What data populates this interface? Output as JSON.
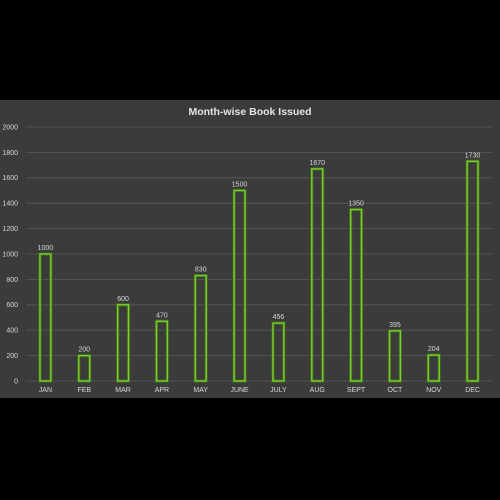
{
  "chart_data": {
    "type": "bar",
    "title": "Month-wise Book Issued",
    "xlabel": "",
    "ylabel": "",
    "categories": [
      "JAN",
      "FEB",
      "MAR",
      "APR",
      "MAY",
      "JUNE",
      "JULY",
      "AUG",
      "SEPT",
      "OCT",
      "NOV",
      "DEC"
    ],
    "values": [
      1000,
      200,
      600,
      470,
      830,
      1500,
      456,
      1670,
      1350,
      395,
      204,
      1730
    ],
    "ylim": [
      0,
      2000
    ],
    "yticks": [
      0,
      200,
      400,
      600,
      800,
      1000,
      1200,
      1400,
      1600,
      1800,
      2000
    ],
    "grid": true,
    "legend": "none",
    "colors": {
      "background": "#3b3b3b",
      "page": "#000000",
      "bar_outline": "#7dcd32",
      "grid": "#5a5a5a",
      "text": "#d6d6d6"
    }
  }
}
